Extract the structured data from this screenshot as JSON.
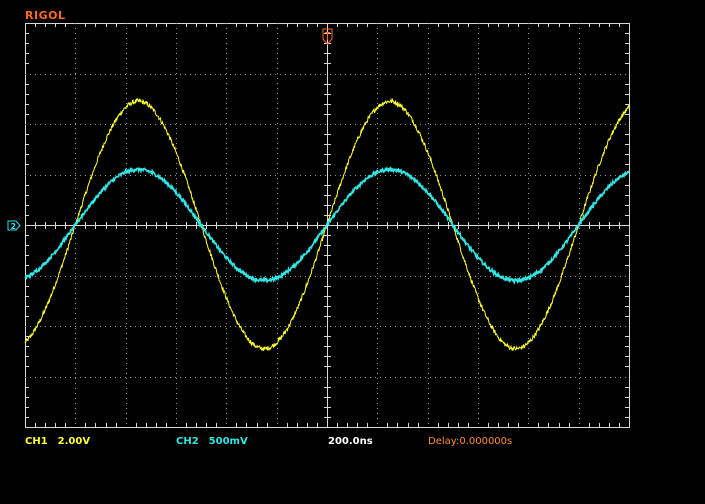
{
  "brand": {
    "name": "RIGOL",
    "color": "#ff6a1a"
  },
  "channels": [
    {
      "id": "CH1",
      "label": "CH1",
      "scale": "2.00V",
      "color": "#ffff33"
    },
    {
      "id": "CH2",
      "label": "CH2",
      "scale": "500mV",
      "color": "#33e6e6"
    }
  ],
  "timebase": {
    "value": "200.0ns"
  },
  "delay": {
    "text": "Delay:0.000000s",
    "color": "#ff8c3a"
  },
  "trigger_marker": {
    "icon": "trigger-position-marker-icon",
    "glyph": "T",
    "color": "#ff6a1a"
  },
  "ground_marker": {
    "icon": "channel-ground-marker-icon",
    "glyph": "2",
    "color": "#33e6e6"
  },
  "chart_data": {
    "type": "line",
    "title": "",
    "xlabel": "",
    "ylabel": "",
    "grid": true,
    "x_divisions": 12,
    "y_divisions": 8,
    "x_range_div": [
      -6,
      6
    ],
    "y_range_div": [
      -4,
      4
    ],
    "series": [
      {
        "name": "CH1",
        "waveform": "sine",
        "amplitude_div": 2.45,
        "period_div": 5.0,
        "phase_zero_crossing_div": 0.0
      },
      {
        "name": "CH2",
        "waveform": "sine",
        "amplitude_div": 1.1,
        "period_div": 5.0,
        "phase_zero_crossing_div": 0.0
      }
    ]
  }
}
